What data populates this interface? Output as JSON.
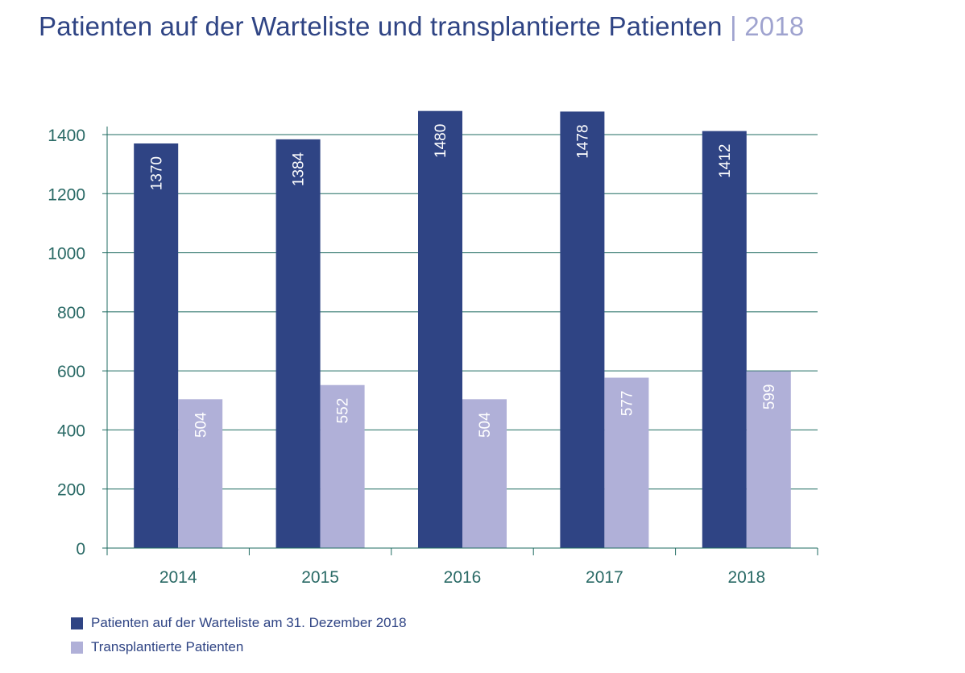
{
  "title": {
    "main": "Patienten auf der Warteliste und transplantierte Patienten",
    "separator": "|",
    "year": "2018"
  },
  "colors": {
    "waitlist": "#2f4484",
    "transplanted": "#b0b0d8",
    "grid": "#1f6b61",
    "axis_text": "#2a6a66"
  },
  "chart_data": {
    "type": "bar",
    "title": "Patienten auf der Warteliste und transplantierte Patienten | 2018",
    "categories": [
      "2014",
      "2015",
      "2016",
      "2017",
      "2018"
    ],
    "series": [
      {
        "name": "Patienten auf der Warteliste am 31. Dezember 2018",
        "values": [
          1370,
          1384,
          1480,
          1478,
          1412
        ],
        "labels": [
          "1370",
          "1384",
          "1480",
          "1478",
          "1412"
        ]
      },
      {
        "name": "Transplantierte Patienten",
        "values": [
          504,
          552,
          504,
          577,
          599
        ],
        "labels": [
          "504",
          "552",
          "504",
          "577",
          "599"
        ]
      }
    ],
    "yticks": [
      "0",
      "200",
      "400",
      "600",
      "800",
      "1000",
      "1200",
      "1400"
    ],
    "ylim": [
      0,
      1400
    ],
    "xlabel": "",
    "ylabel": "",
    "grid": true,
    "legend_position": "bottom-left"
  }
}
